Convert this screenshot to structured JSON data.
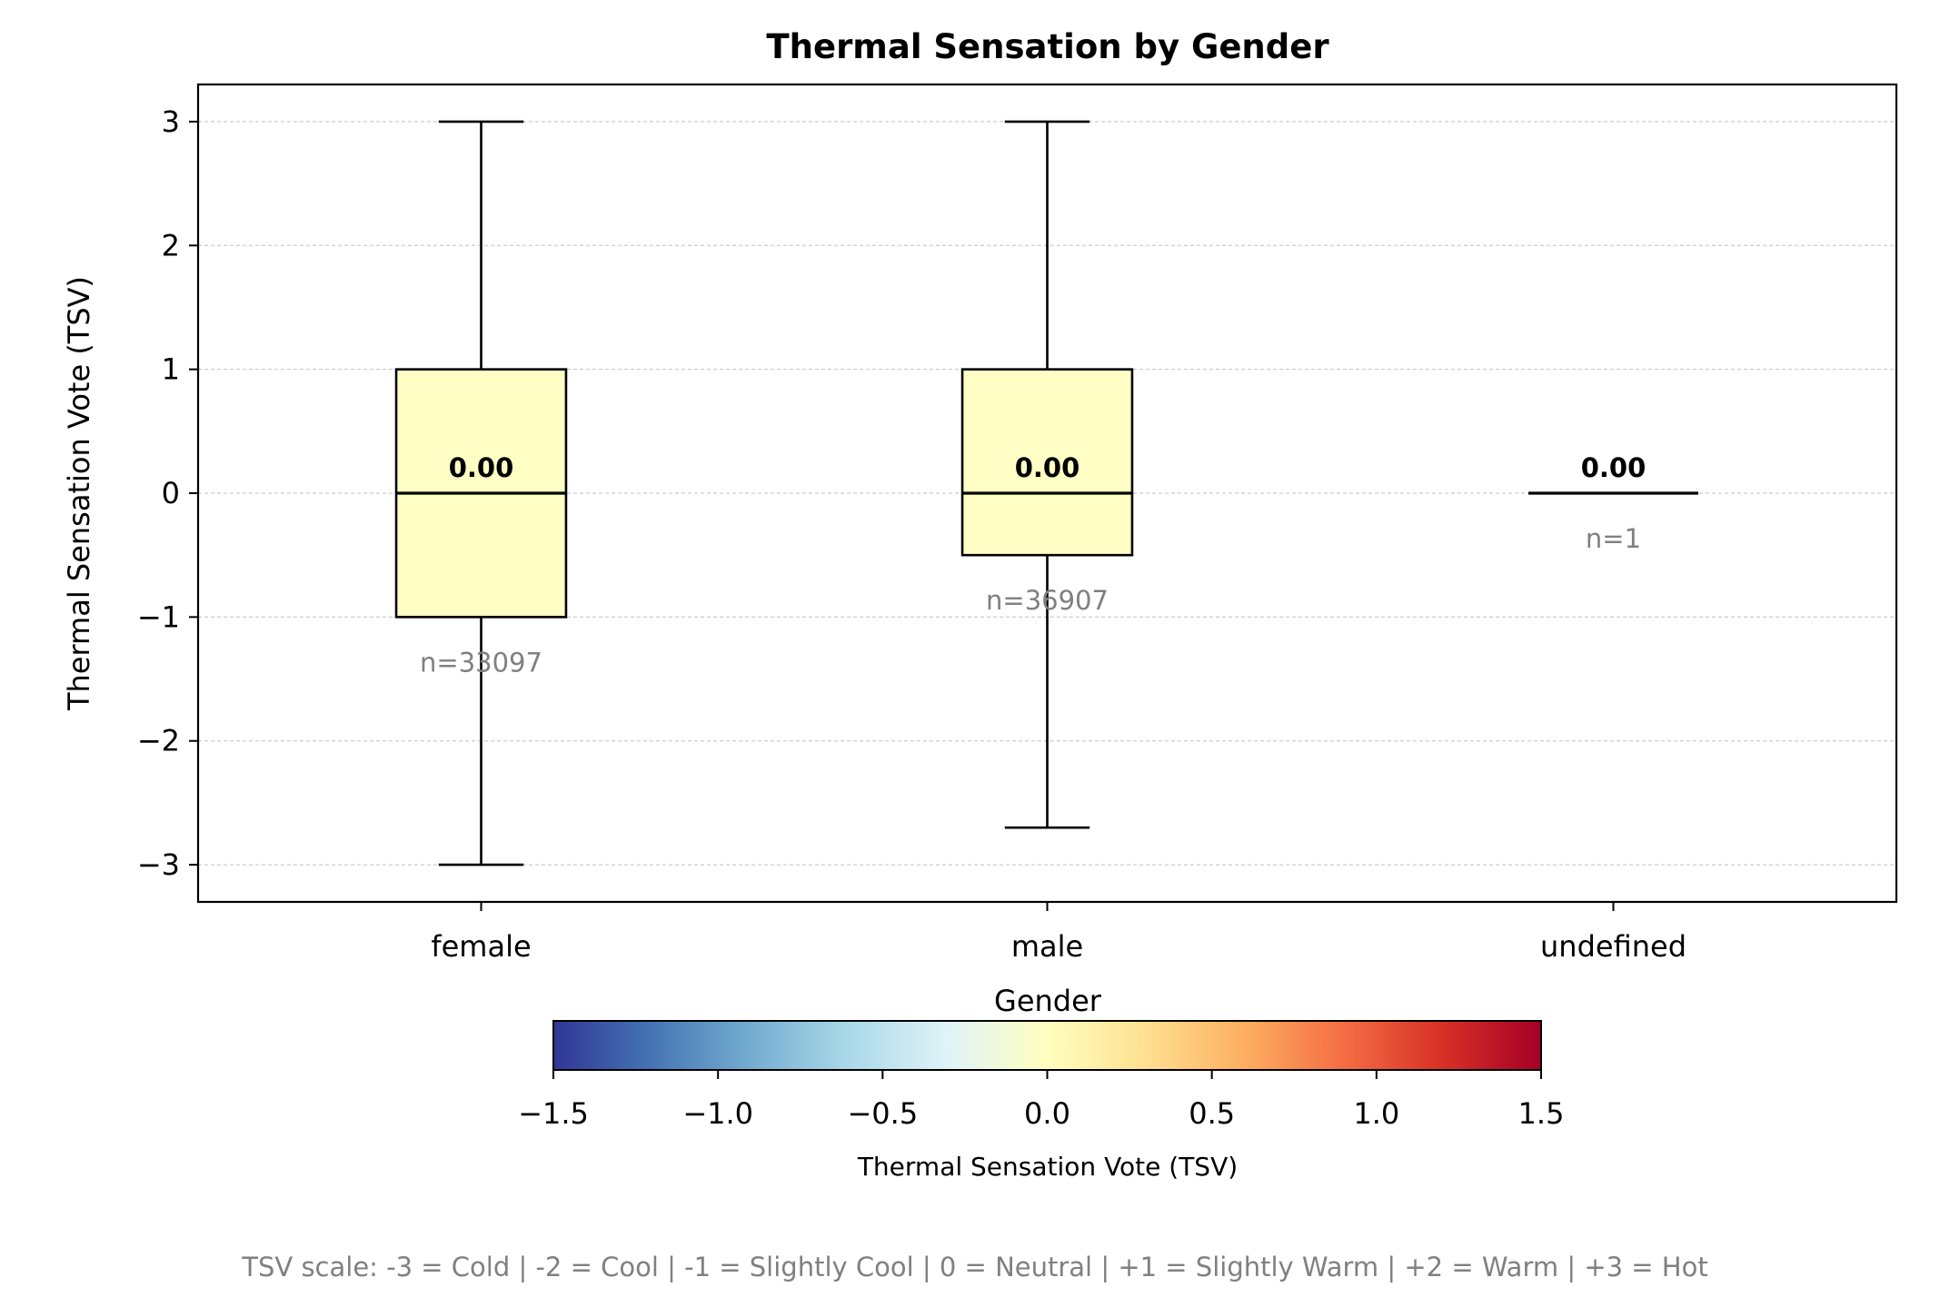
{
  "chart_data": {
    "type": "box",
    "title": "Thermal Sensation by Gender",
    "xlabel": "Gender",
    "ylabel": "Thermal Sensation Vote (TSV)",
    "ylim": [
      -3.3,
      3.3
    ],
    "yticks": [
      3,
      2,
      1,
      0,
      -1,
      -2,
      -3
    ],
    "ytick_labels": [
      "3",
      "2",
      "1",
      "0",
      "−1",
      "−2",
      "−3"
    ],
    "grid": "horizontal dashed",
    "categories": [
      "female",
      "male",
      "undefined"
    ],
    "boxes": [
      {
        "category": "female",
        "whisker_low": -3,
        "q1": -1,
        "median": 0,
        "q3": 1,
        "whisker_high": 3,
        "median_label": "0.00",
        "count_label": "n=33097",
        "fill": "#ffffc5"
      },
      {
        "category": "male",
        "whisker_low": -2.7,
        "q1": -0.5,
        "median": 0,
        "q3": 1,
        "whisker_high": 3,
        "median_label": "0.00",
        "count_label": "n=36907",
        "fill": "#ffffc5"
      },
      {
        "category": "undefined",
        "whisker_low": 0,
        "q1": 0,
        "median": 0,
        "q3": 0,
        "whisker_high": 0,
        "median_label": "0.00",
        "count_label": "n=1",
        "fill": "#ffffc5"
      }
    ],
    "colorbar": {
      "label": "Thermal Sensation Vote (TSV)",
      "range": [
        -1.5,
        1.5
      ],
      "ticks": [
        -1.5,
        -1.0,
        -0.5,
        0.0,
        0.5,
        1.0,
        1.5
      ],
      "tick_labels": [
        "−1.5",
        "−1.0",
        "−0.5",
        "0.0",
        "0.5",
        "1.0",
        "1.5"
      ],
      "colormap": "RdYlBu_r",
      "colors": [
        "#313695",
        "#4575b4",
        "#74add1",
        "#abd9e9",
        "#e0f3f8",
        "#ffffbf",
        "#fee090",
        "#fdae61",
        "#f46d43",
        "#d73027",
        "#a50026"
      ]
    },
    "footnote": "TSV scale: -3 = Cold | -2 = Cool | -1 = Slightly Cool | 0 = Neutral | +1 = Slightly Warm | +2 = Warm | +3 = Hot"
  }
}
